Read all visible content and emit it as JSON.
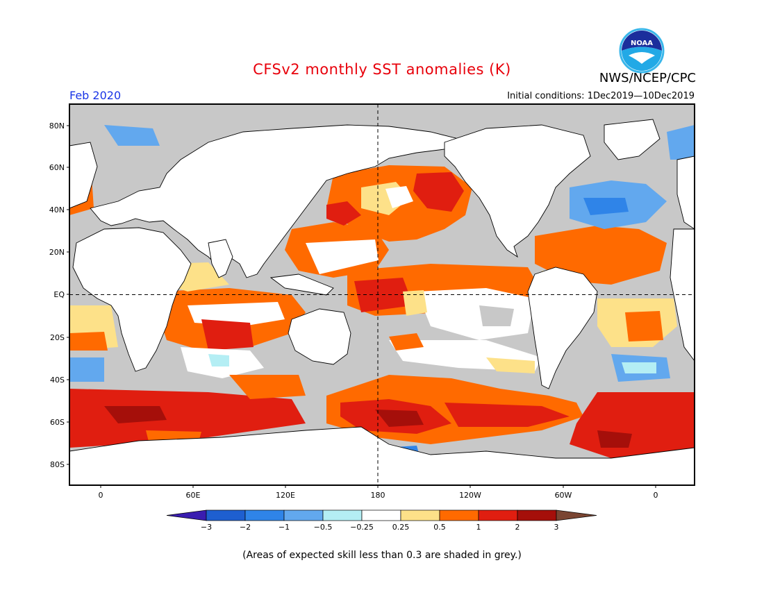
{
  "header": {
    "title": "CFSv2 monthly SST anomalies (K)",
    "agency": "NWS/NCEP/CPC",
    "logo_text": "NOAA",
    "valid_month": "Feb 2020",
    "initial_conditions": "Initial conditions: 1Dec2019—10Dec2019"
  },
  "map": {
    "projection": "cylindrical-equidistant",
    "lon_range": [
      -20,
      380
    ],
    "lat_range": [
      -90,
      90
    ],
    "lat_ticks": [
      "80N",
      "60N",
      "40N",
      "20N",
      "EQ",
      "20S",
      "40S",
      "60S",
      "80S"
    ],
    "lon_ticks": [
      "0",
      "60E",
      "120E",
      "180",
      "120W",
      "60W",
      "0"
    ],
    "reference_lines": "dashed equator and 180 meridian",
    "land_color": "#ffffff",
    "low_skill_color": "#c8c8c8"
  },
  "colorbar": {
    "labels": [
      "−3",
      "−2",
      "−1",
      "−0.5",
      "−0.25",
      "0.25",
      "0.5",
      "1",
      "2",
      "3"
    ],
    "colors": [
      "#3a1db0",
      "#1e5fd0",
      "#2f84e8",
      "#62a8ee",
      "#b4eef4",
      "#ffffff",
      "#fde189",
      "#ff6a00",
      "#e01e10",
      "#a50f0a",
      "#7a4532"
    ]
  },
  "footnote": "(Areas of expected skill less than 0.3 are shaded in grey.)"
}
